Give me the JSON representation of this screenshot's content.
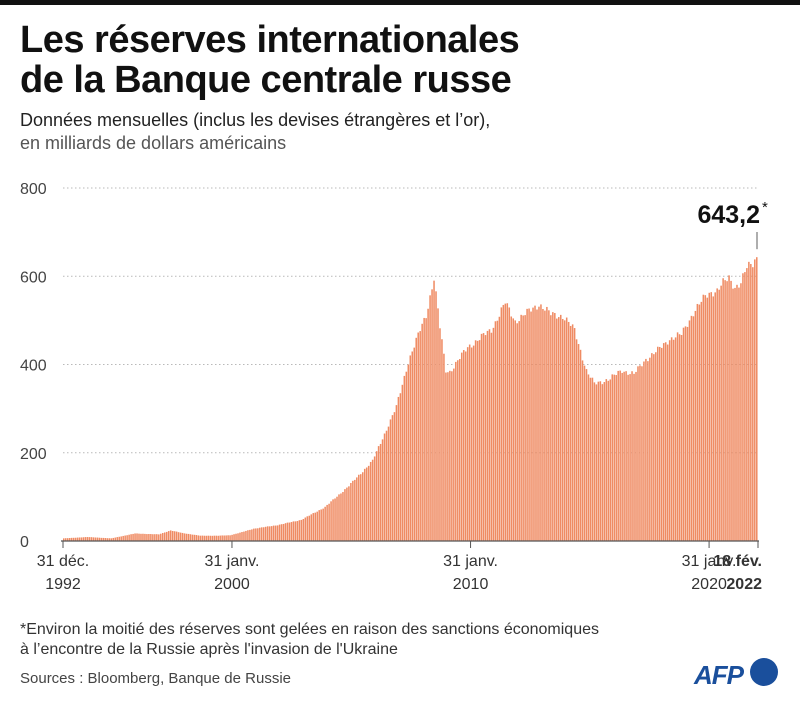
{
  "header": {
    "title_line1": "Les réserves internationales",
    "title_line2": "de la Banque centrale russe",
    "subtitle_line1": "Données mensuelles (inclus les devises étrangères et l’or),",
    "subtitle_line2": "en milliards de dollars américains"
  },
  "chart_data": {
    "type": "bar",
    "title": "Les réserves internationales de la Banque centrale russe",
    "subtitle": "Données mensuelles (inclus les devises étrangères et l’or), en milliards de dollars américains",
    "xlabel": "",
    "ylabel": "",
    "ylim": [
      0,
      800
    ],
    "yticks": [
      0,
      200,
      400,
      600,
      800
    ],
    "grid": true,
    "bar_color": "#ef8b63",
    "x_tick_labels": [
      {
        "date": "1992-12-31",
        "line1": "31 déc.",
        "line2": "1992",
        "bold": false
      },
      {
        "date": "2000-01-31",
        "line1": "31 janv.",
        "line2": "2000",
        "bold": false
      },
      {
        "date": "2010-01-31",
        "line1": "31 janv.",
        "line2": "2010",
        "bold": false
      },
      {
        "date": "2020-01-31",
        "line1": "31 janv.",
        "line2": "2020",
        "bold": false
      },
      {
        "date": "2022-02-18",
        "line1": "18 fév.",
        "line2": "2022",
        "bold": true
      }
    ],
    "annotation": {
      "date": "2022-02-18",
      "value": 643.2,
      "label": "643,2",
      "marker": "*"
    },
    "series": [
      {
        "keypoints": [
          {
            "date": "1992-12-31",
            "value": 6
          },
          {
            "date": "1993-12-31",
            "value": 9
          },
          {
            "date": "1994-12-31",
            "value": 6
          },
          {
            "date": "1995-12-31",
            "value": 17
          },
          {
            "date": "1996-12-31",
            "value": 15
          },
          {
            "date": "1997-06-30",
            "value": 24
          },
          {
            "date": "1997-12-31",
            "value": 18
          },
          {
            "date": "1998-09-30",
            "value": 12
          },
          {
            "date": "1999-06-30",
            "value": 12
          },
          {
            "date": "1999-12-31",
            "value": 13
          },
          {
            "date": "2000-06-30",
            "value": 20
          },
          {
            "date": "2000-12-31",
            "value": 28
          },
          {
            "date": "2001-12-31",
            "value": 36
          },
          {
            "date": "2002-12-31",
            "value": 48
          },
          {
            "date": "2003-12-31",
            "value": 77
          },
          {
            "date": "2004-12-31",
            "value": 125
          },
          {
            "date": "2005-12-31",
            "value": 182
          },
          {
            "date": "2006-12-31",
            "value": 304
          },
          {
            "date": "2007-06-30",
            "value": 406
          },
          {
            "date": "2007-12-31",
            "value": 478
          },
          {
            "date": "2008-03-31",
            "value": 512
          },
          {
            "date": "2008-07-31",
            "value": 597
          },
          {
            "date": "2008-10-31",
            "value": 484
          },
          {
            "date": "2009-01-31",
            "value": 386
          },
          {
            "date": "2009-03-31",
            "value": 384
          },
          {
            "date": "2009-12-31",
            "value": 439
          },
          {
            "date": "2010-12-31",
            "value": 479
          },
          {
            "date": "2011-07-31",
            "value": 540
          },
          {
            "date": "2011-12-31",
            "value": 498
          },
          {
            "date": "2012-12-31",
            "value": 537
          },
          {
            "date": "2013-06-30",
            "value": 514
          },
          {
            "date": "2013-12-31",
            "value": 510
          },
          {
            "date": "2014-06-30",
            "value": 478
          },
          {
            "date": "2014-12-31",
            "value": 386
          },
          {
            "date": "2015-04-30",
            "value": 356
          },
          {
            "date": "2015-12-31",
            "value": 368
          },
          {
            "date": "2016-06-30",
            "value": 387
          },
          {
            "date": "2016-12-31",
            "value": 378
          },
          {
            "date": "2017-06-30",
            "value": 412
          },
          {
            "date": "2017-12-31",
            "value": 432
          },
          {
            "date": "2018-06-30",
            "value": 458
          },
          {
            "date": "2018-12-31",
            "value": 468
          },
          {
            "date": "2019-06-30",
            "value": 518
          },
          {
            "date": "2019-12-31",
            "value": 554
          },
          {
            "date": "2020-03-31",
            "value": 564
          },
          {
            "date": "2020-06-30",
            "value": 568
          },
          {
            "date": "2020-09-30",
            "value": 584
          },
          {
            "date": "2020-12-31",
            "value": 596
          },
          {
            "date": "2021-03-31",
            "value": 576
          },
          {
            "date": "2021-06-30",
            "value": 585
          },
          {
            "date": "2021-09-30",
            "value": 619
          },
          {
            "date": "2021-12-31",
            "value": 630
          },
          {
            "date": "2022-02-18",
            "value": 643.2
          }
        ]
      }
    ]
  },
  "footer": {
    "footnote_line1": "*Environ la moitié des réserves sont gelées en raison des sanctions économiques",
    "footnote_line2": "à l’encontre de la Russie après l'invasion de l'Ukraine",
    "sources": "Sources : Bloomberg, Banque de Russie",
    "logo_text": "AFP"
  }
}
